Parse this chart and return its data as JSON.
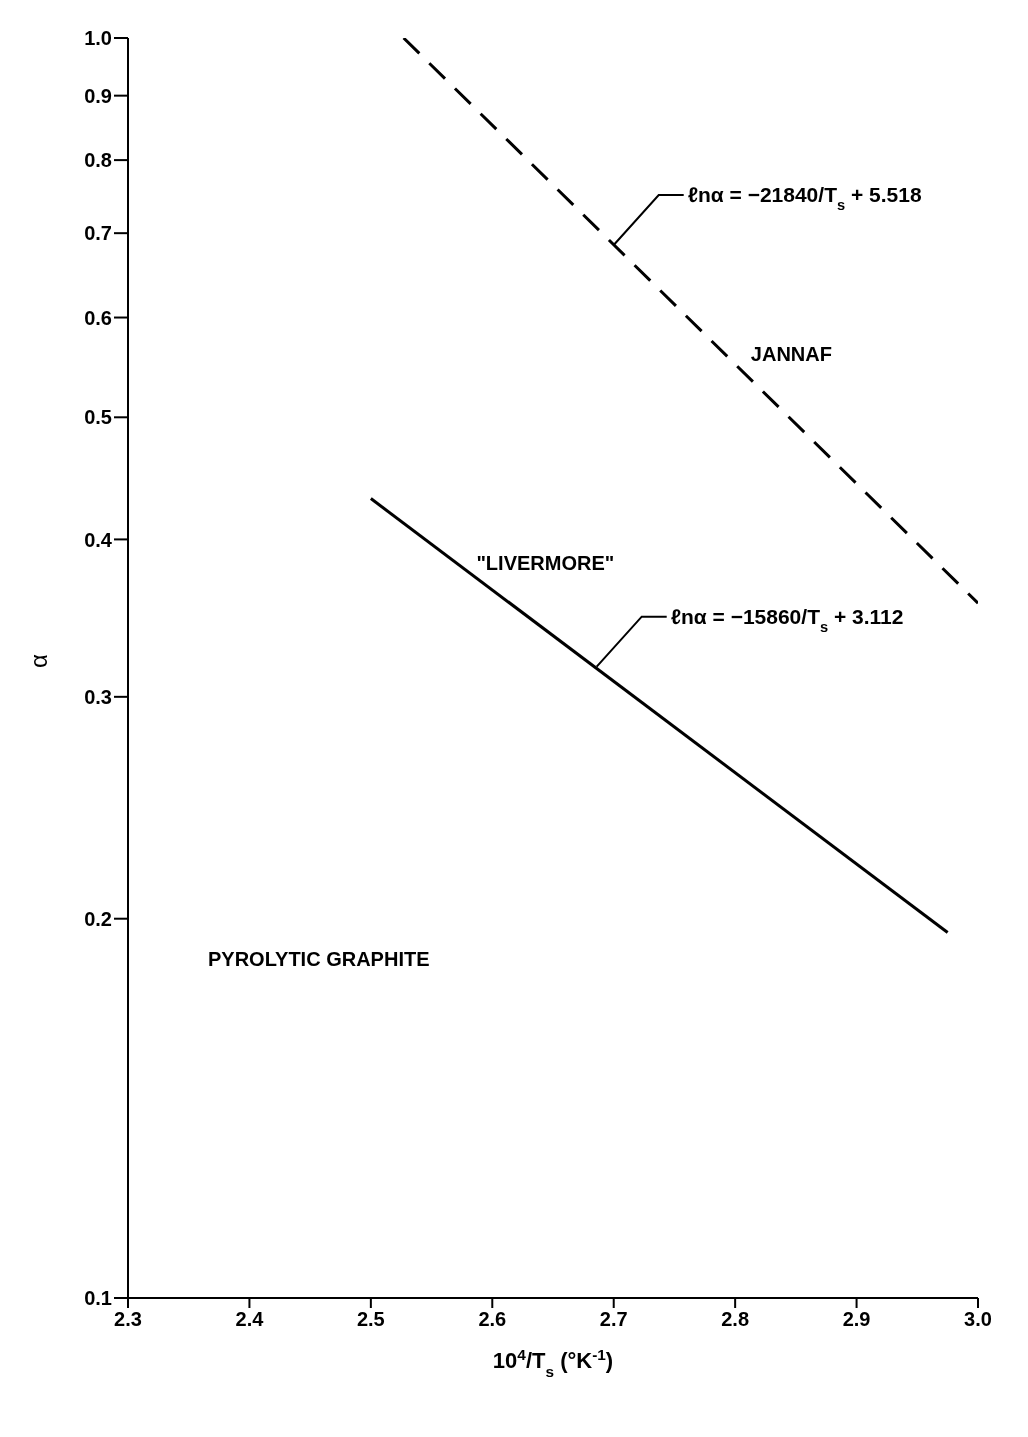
{
  "chart_data": {
    "type": "line",
    "xlabel": "10$^{4}$/T$_{s}$ (°K$^{-1}$)",
    "ylabel": "α",
    "xlim": [
      2.3,
      3.0
    ],
    "xticks": [
      2.3,
      2.4,
      2.5,
      2.6,
      2.7,
      2.8,
      2.9,
      {
        "value": 3,
        "label": "3.0"
      }
    ],
    "ylim": [
      0.1,
      1.0
    ],
    "yticks": [
      0.1,
      0.2,
      0.3,
      0.4,
      0.5,
      0.6,
      0.7,
      0.8,
      0.9,
      {
        "value": 1,
        "label": "1.0"
      }
    ],
    "log": "y",
    "marker": "none",
    "series": [
      {
        "name": "JANNAF",
        "color": "#000000",
        "line_style": "dashed",
        "x": [
          2.527,
          3.0
        ],
        "values": [
          1.0,
          0.356
        ]
      },
      {
        "name": "\"LIVERMORE\"",
        "color": "#000000",
        "line_style": "solid",
        "x": [
          2.5,
          2.975
        ],
        "values": [
          0.431,
          0.195
        ]
      }
    ],
    "annotations": [
      {
        "text": "ℓnα = −21840/T$_{s}$ + 5.518",
        "x": 2.7,
        "y": 0.685
      },
      {
        "text": "ℓnα = −15860/T$_{s}$ + 3.112",
        "x": 2.686,
        "y": 0.317
      },
      "PYROLYTIC GRAPHITE"
    ]
  }
}
